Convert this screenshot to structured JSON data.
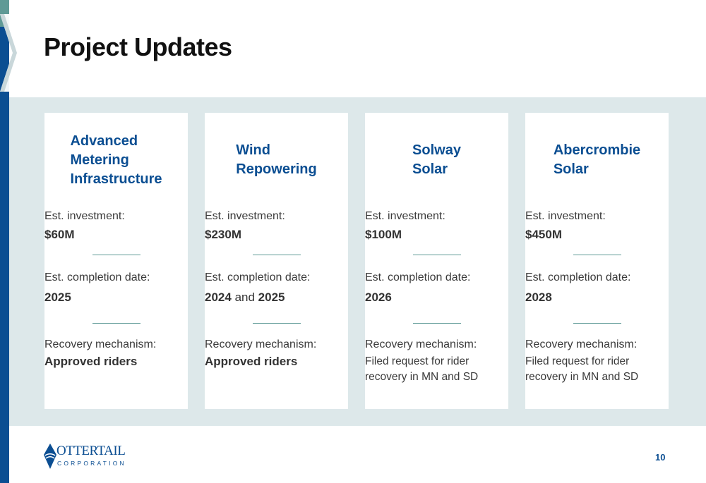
{
  "title": "Project Updates",
  "colors": {
    "accent_blue": "#0b4e92",
    "accent_teal": "#5f9a96",
    "band": "#dde8ea"
  },
  "labels": {
    "investment": "Est. investment:",
    "completion": "Est. completion date:",
    "recovery": "Recovery mechanism:"
  },
  "cards": [
    {
      "title": "Advanced\nMetering\nInfrastructure",
      "investment": "$60M",
      "completion": "2025",
      "recovery": "Approved riders"
    },
    {
      "title": "Wind\nRepowering",
      "investment": "$230M",
      "completion_a": "2024",
      "completion_joiner": "and",
      "completion_b": "2025",
      "recovery": "Approved riders"
    },
    {
      "title": "Solway\nSolar",
      "investment": "$100M",
      "completion": "2026",
      "recovery": "Filed request for rider\nrecovery in MN and SD"
    },
    {
      "title": "Abercrombie\nSolar",
      "investment": "$450M",
      "completion": "2028",
      "recovery": "Filed request for rider\nrecovery in MN and SD"
    }
  ],
  "logo": {
    "name": "OTTERTAIL",
    "sub": "CORPORATION",
    "icon": "otter-tail-diamond-logo"
  },
  "page_number": "10"
}
